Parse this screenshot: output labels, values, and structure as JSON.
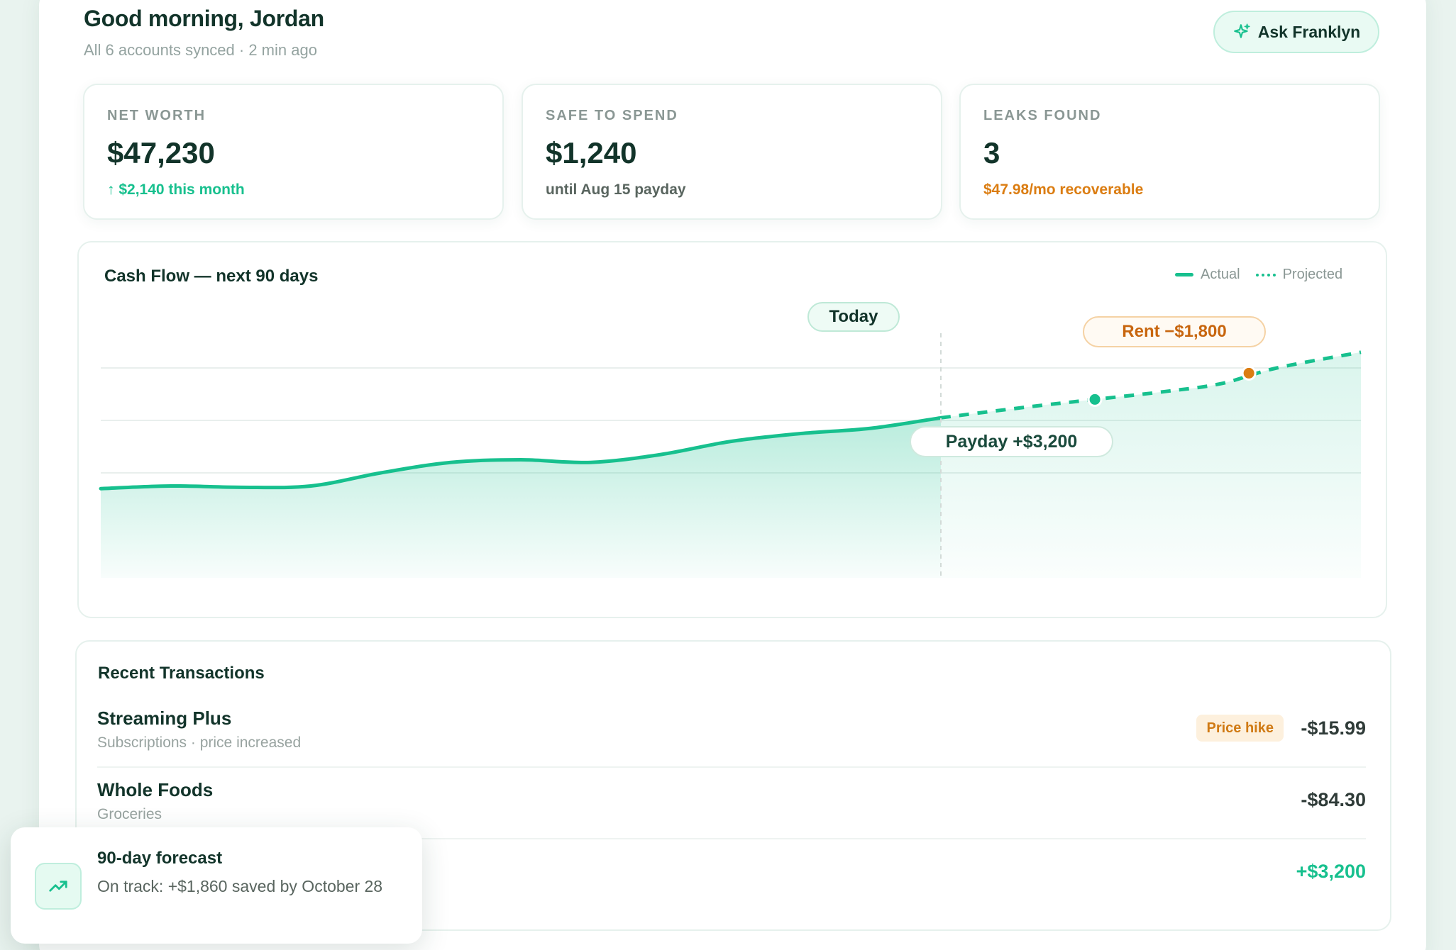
{
  "header": {
    "greeting": "Good morning, Jordan",
    "sync_status": "All 6 accounts synced · 2 min ago",
    "ask_button": "Ask Franklyn"
  },
  "stats": [
    {
      "label": "NET WORTH",
      "value": "$47,230",
      "sub": "↑ $2,140 this month"
    },
    {
      "label": "SAFE TO SPEND",
      "value": "$1,240",
      "sub": "until Aug 15 payday"
    },
    {
      "label": "LEAKS FOUND",
      "value": "3",
      "sub": "$47.98/mo recoverable"
    }
  ],
  "colors": {
    "accent": "#17c08e",
    "warning": "#db7d12",
    "text": "#12342a"
  },
  "chart": {
    "title": "Cash Flow — next 90 days",
    "legend_actual": "Actual",
    "legend_projected": "Projected",
    "today_label": "Today",
    "rent_label": "Rent −$1,800",
    "payday_label": "Payday +$3,200"
  },
  "chart_data": {
    "type": "area",
    "title": "Cash Flow — next 90 days",
    "x_domain": [
      0,
      90
    ],
    "y_domain": [
      0,
      100
    ],
    "grid": true,
    "series": [
      {
        "name": "Actual",
        "style": "solid",
        "points": [
          [
            0,
            34
          ],
          [
            5,
            35
          ],
          [
            10,
            34.5
          ],
          [
            15,
            35
          ],
          [
            20,
            40
          ],
          [
            25,
            44
          ],
          [
            30,
            45
          ],
          [
            35,
            44
          ],
          [
            40,
            47
          ],
          [
            45,
            52
          ],
          [
            50,
            55
          ],
          [
            55,
            57
          ],
          [
            60,
            61
          ]
        ]
      },
      {
        "name": "Projected",
        "style": "dashed",
        "points": [
          [
            60,
            61
          ],
          [
            66,
            65
          ],
          [
            71,
            68
          ],
          [
            76,
            71
          ],
          [
            80,
            74
          ],
          [
            84,
            80
          ],
          [
            90,
            86
          ]
        ]
      }
    ],
    "annotations": [
      {
        "label": "Today",
        "x": 60,
        "type": "vline"
      },
      {
        "label": "Payday +$3,200",
        "x": 71,
        "y": 68,
        "marker_color": "#17c08e"
      },
      {
        "label": "Rent −$1,800",
        "x": 82,
        "y": 78,
        "marker_color": "#db7d12"
      }
    ]
  },
  "transactions": {
    "title": "Recent Transactions",
    "items": [
      {
        "name": "Streaming Plus",
        "category": "Subscriptions · price increased",
        "badge": "Price hike",
        "amount": "-$15.99"
      },
      {
        "name": "Whole Foods",
        "category": "Groceries",
        "amount": "-$84.30"
      },
      {
        "name": "",
        "category": "",
        "amount": "+$3,200"
      }
    ]
  },
  "toast": {
    "icon": "trending-up-icon",
    "title": "90-day forecast",
    "body": "On track: +$1,860 saved by October 28"
  }
}
